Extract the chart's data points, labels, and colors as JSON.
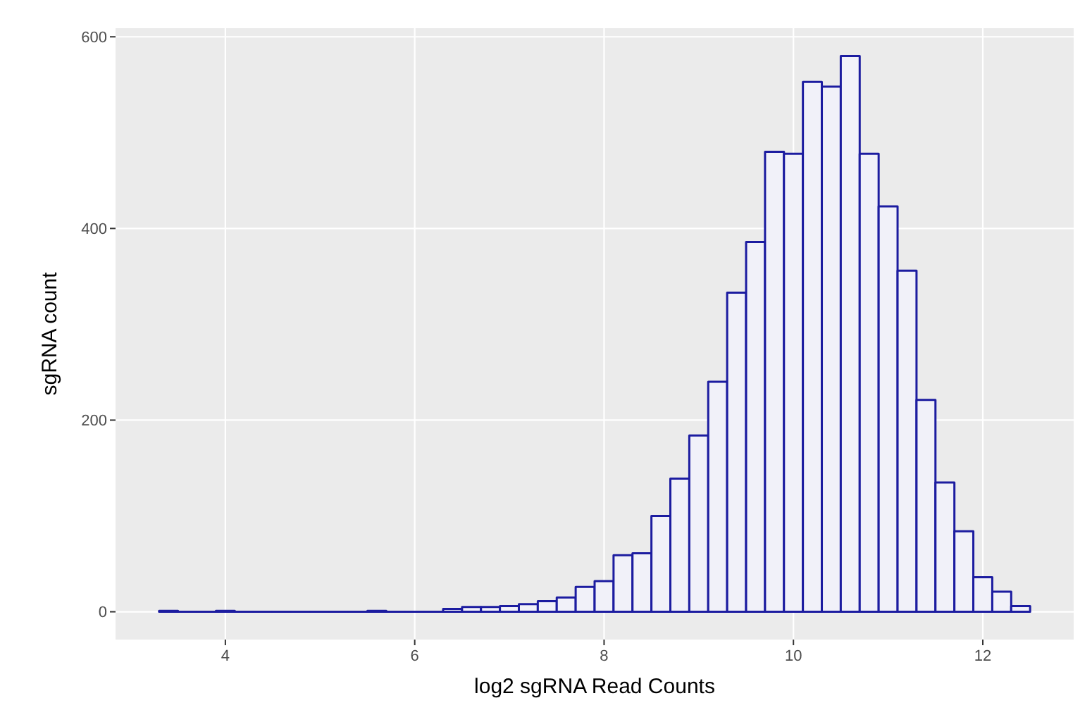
{
  "chart_data": {
    "type": "histogram",
    "xlabel": "log2 sgRNA Read Counts",
    "ylabel": "sgRNA count",
    "bins": [
      3.3,
      3.5,
      3.7,
      3.9,
      4.1,
      4.3,
      4.5,
      4.7,
      4.9,
      5.1,
      5.3,
      5.5,
      5.7,
      5.9,
      6.1,
      6.3,
      6.5,
      6.7,
      6.9,
      7.1,
      7.3,
      7.5,
      7.7,
      7.9,
      8.1,
      8.3,
      8.5,
      8.7,
      8.9,
      9.1,
      9.3,
      9.5,
      9.7,
      9.9,
      10.1,
      10.3,
      10.5,
      10.7,
      10.9,
      11.1,
      11.3,
      11.5,
      11.7,
      11.9,
      12.1,
      12.3,
      12.5
    ],
    "values": [
      1,
      0,
      0,
      1,
      0,
      0,
      0,
      0,
      0,
      0,
      0,
      1,
      0,
      0,
      0,
      3,
      5,
      5,
      6,
      8,
      11,
      15,
      26,
      32,
      59,
      61,
      100,
      139,
      184,
      240,
      333,
      386,
      480,
      478,
      553,
      548,
      580,
      478,
      423,
      356,
      221,
      135,
      84,
      36,
      21,
      6
    ],
    "color": "#1c1ca0",
    "xlim": [
      2.84,
      12.96
    ],
    "ylim": [
      -29,
      609
    ],
    "xticks": [
      4,
      6,
      8,
      10,
      12
    ],
    "yticks": [
      0,
      200,
      400,
      600
    ],
    "grid": true
  }
}
